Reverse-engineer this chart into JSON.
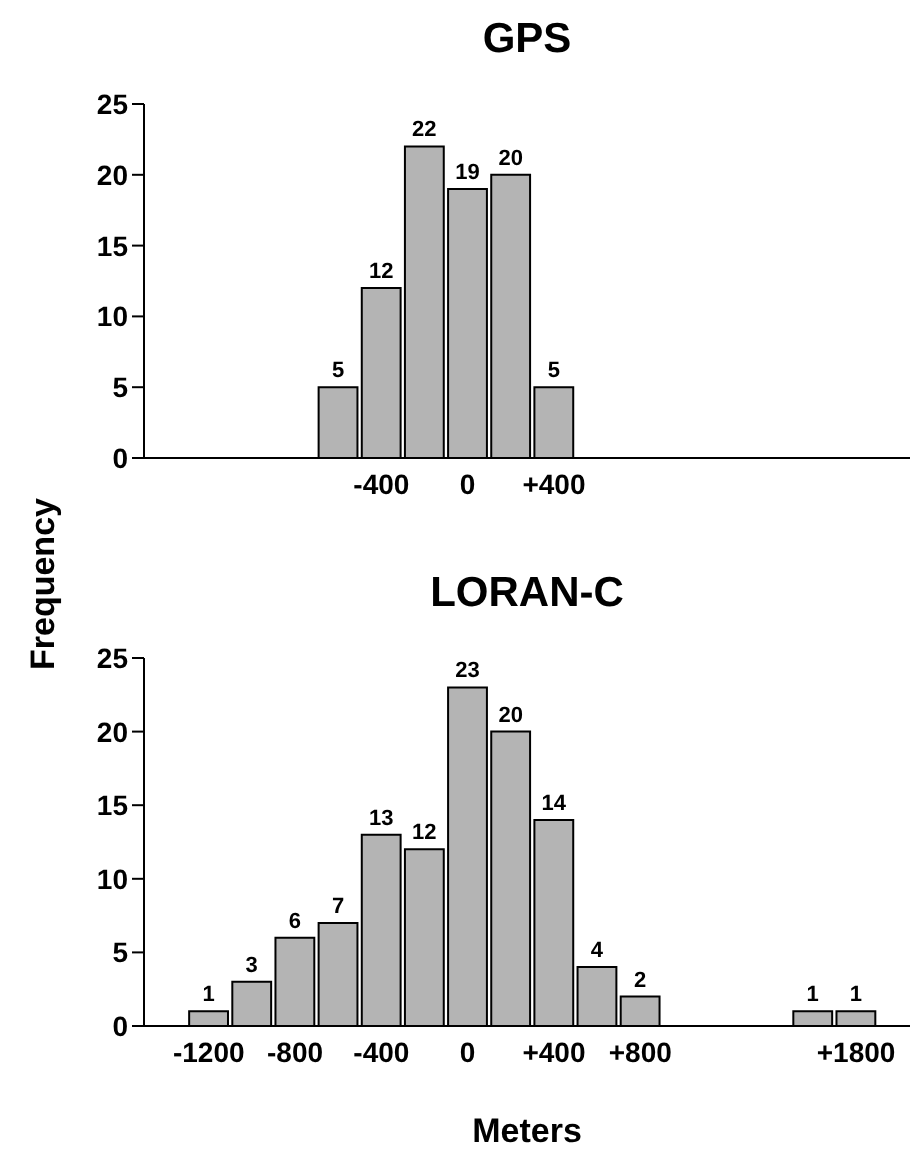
{
  "chart_data": [
    {
      "type": "histogram",
      "title": "GPS",
      "ylabel": "Frequency",
      "bins": [
        -700,
        -500,
        -300,
        -100,
        100,
        300,
        500
      ],
      "values": [
        5,
        12,
        22,
        19,
        20,
        5
      ],
      "color": "#b4b4b4",
      "data_labels": true,
      "xlim": [
        -1500,
        2050
      ],
      "xticks": [
        -400,
        0,
        {
          "value": 400,
          "label": "+400"
        }
      ],
      "ylim": [
        0,
        25
      ],
      "yticks": [
        0,
        5,
        10,
        15,
        20,
        25
      ],
      "grid": false,
      "legend": false
    },
    {
      "type": "histogram",
      "title": "LORAN-C",
      "xlabel": "Meters",
      "bins": [
        -1300,
        -1100,
        -900,
        -700,
        -500,
        -300,
        -100,
        100,
        300,
        500,
        700,
        900,
        1100,
        1300,
        1500,
        1700,
        1900
      ],
      "values": [
        1,
        3,
        6,
        7,
        13,
        12,
        23,
        20,
        14,
        4,
        2,
        0,
        0,
        0,
        1,
        1
      ],
      "value_labels": [
        "1",
        "3",
        "6",
        "7",
        "13",
        "12",
        "23",
        "20",
        "14",
        "4",
        "2",
        null,
        null,
        null,
        "1",
        "1"
      ],
      "color": "#b4b4b4",
      "xlim": [
        -1500,
        2050
      ],
      "xticks": [
        -1200,
        -800,
        -400,
        0,
        {
          "value": 400,
          "label": "+400"
        },
        {
          "value": 800,
          "label": "+800"
        },
        {
          "value": 1800,
          "label": "+1800"
        }
      ],
      "ylim": [
        0,
        25
      ],
      "yticks": [
        0,
        5,
        10,
        15,
        20,
        25
      ],
      "grid": false,
      "legend": false
    }
  ]
}
